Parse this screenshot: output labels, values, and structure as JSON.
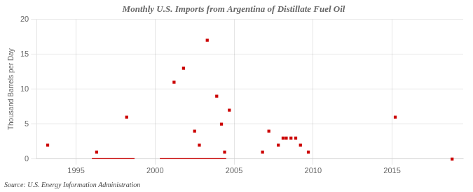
{
  "chart_data": {
    "type": "scatter",
    "title": "Monthly U.S. Imports from Argentina of Distillate Fuel Oil",
    "ylabel": "Thousand Barrels per Day",
    "annotation": "Source: U.S. Energy Information Administration",
    "series": [
      {
        "type": "scatter",
        "color": "#cc0000",
        "marker": "square",
        "x": [
          1993.2,
          1996.3,
          1998.2,
          2001.2,
          2001.8,
          2002.5,
          2002.8,
          2003.3,
          2003.9,
          2004.2,
          2004.4,
          2004.7,
          2006.8,
          2007.2,
          2007.8,
          2008.1,
          2008.3,
          2008.6,
          2008.9,
          2009.2,
          2009.7,
          2015.2,
          2018.8
        ],
        "values": [
          2.0,
          1.0,
          6.0,
          11.0,
          13.0,
          4.0,
          2.0,
          17.0,
          9.0,
          5.0,
          1.0,
          7.0,
          1.0,
          4.0,
          2.0,
          3.0,
          3.0,
          3.0,
          3.0,
          2.0,
          1.0,
          6.0,
          0.0
        ]
      },
      {
        "type": "line",
        "color": "#cc0000",
        "x": [
          1996.0,
          1998.7
        ],
        "values": [
          0.0,
          0.0
        ]
      },
      {
        "type": "line",
        "color": "#cc0000",
        "x": [
          2000.3,
          2004.5
        ],
        "values": [
          0.0,
          0.0
        ]
      }
    ],
    "xlim": [
      1992.5,
      2019.5
    ],
    "ylim": [
      0,
      20
    ],
    "xticks": [
      1995,
      2000,
      2005,
      2010,
      2015
    ],
    "yticks": [
      0,
      5,
      10,
      15,
      20
    ],
    "grid": true
  }
}
